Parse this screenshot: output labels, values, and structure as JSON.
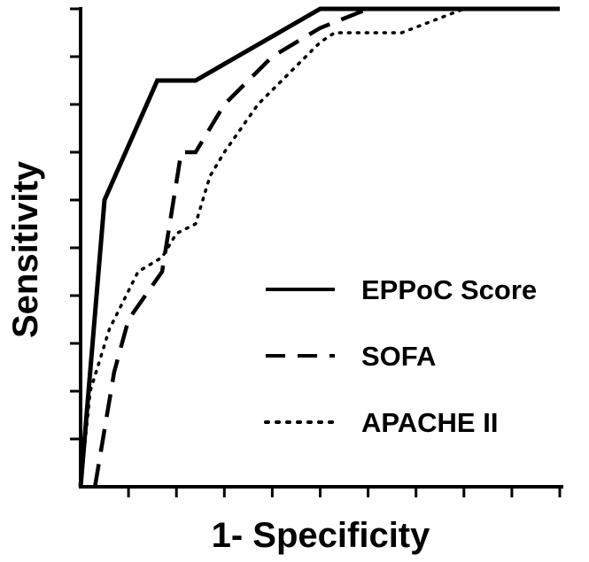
{
  "chart_data": {
    "type": "line",
    "title": "",
    "xlabel": "1- Specificity",
    "ylabel": "Sensitivity",
    "xlim": [
      0,
      1
    ],
    "ylim": [
      0,
      1
    ],
    "grid": false,
    "legend_position": "bottom-right",
    "series": [
      {
        "name": "EPPoC Score",
        "style": "solid",
        "x": [
          0,
          0.05,
          0.16,
          0.24,
          0.5,
          1.0
        ],
        "y": [
          0,
          0.6,
          0.85,
          0.85,
          1.0,
          1.0
        ]
      },
      {
        "name": "SOFA",
        "style": "dashed",
        "x": [
          0.03,
          0.07,
          0.1,
          0.17,
          0.21,
          0.24,
          0.3,
          0.4,
          0.5,
          0.6,
          1.0
        ],
        "y": [
          0,
          0.24,
          0.35,
          0.45,
          0.7,
          0.7,
          0.8,
          0.9,
          0.96,
          1.0,
          1.0
        ],
        "comment": null
      },
      {
        "name": "APACHE II",
        "style": "dotted",
        "x": [
          0,
          0.02,
          0.06,
          0.12,
          0.17,
          0.2,
          0.24,
          0.27,
          0.3,
          0.37,
          0.5,
          0.53,
          0.67,
          0.8,
          1.0
        ],
        "y": [
          0,
          0.2,
          0.33,
          0.45,
          0.48,
          0.53,
          0.55,
          0.65,
          0.7,
          0.8,
          0.93,
          0.95,
          0.95,
          1.0,
          1.0
        ]
      }
    ]
  }
}
